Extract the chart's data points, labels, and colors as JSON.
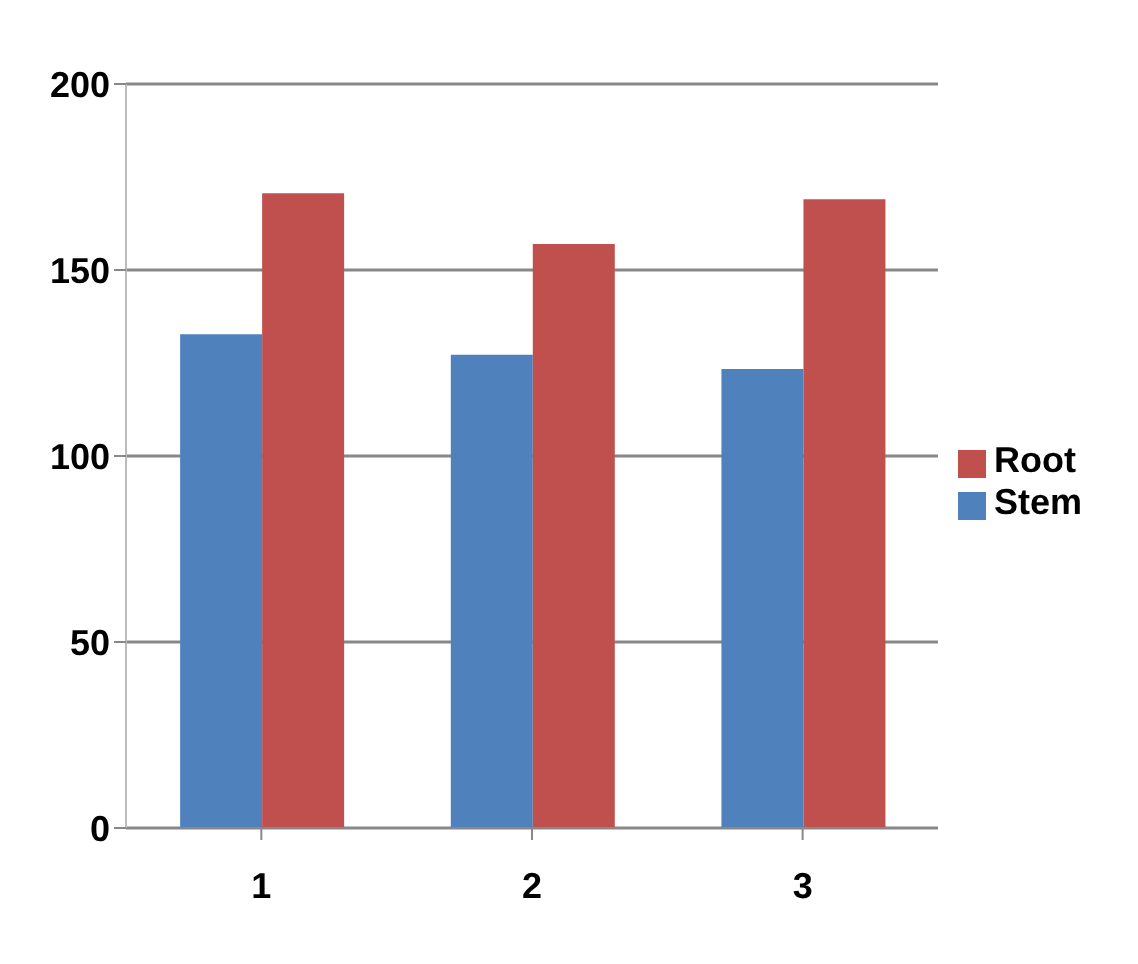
{
  "chart_data": {
    "type": "bar",
    "categories": [
      "1",
      "2",
      "3"
    ],
    "series": [
      {
        "name": "Stem",
        "color": "#4f81bd",
        "values": [
          132.7,
          127.2,
          123.4
        ]
      },
      {
        "name": "Root",
        "color": "#c0504d",
        "values": [
          170.6,
          157,
          169
        ]
      }
    ],
    "ylim": [
      0,
      200
    ],
    "yticks": [
      0,
      50,
      100,
      150,
      200
    ],
    "grid": "y",
    "legend": "right"
  }
}
